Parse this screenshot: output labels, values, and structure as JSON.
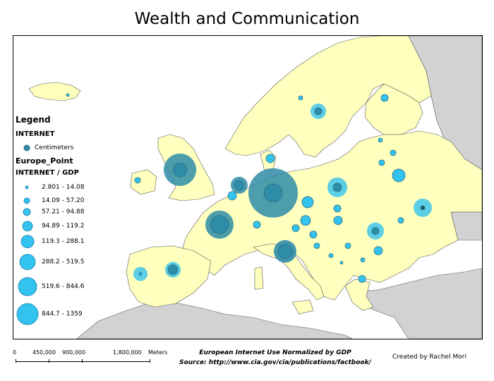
{
  "title": "Wealth and Communication",
  "legend": {
    "heading": "Legend",
    "layer1_name": "INTERNET",
    "layer1_unit": "Centimeters",
    "layer2_name": "Europe_Point",
    "layer2_field": "INTERNET / GDP",
    "classes": [
      {
        "label": "2.801 - 14.08"
      },
      {
        "label": "14.09 - 57.20"
      },
      {
        "label": "57.21 - 94.88"
      },
      {
        "label": "94.89 - 119.2"
      },
      {
        "label": "119.3 - 288.1"
      },
      {
        "label": "288.2 - 519.5"
      },
      {
        "label": "519.6 - 844.6"
      },
      {
        "label": "844.7 - 1359"
      }
    ]
  },
  "scale_bar": {
    "labels": [
      "0",
      "450,000",
      "900,000",
      "1,800,000",
      "Meters"
    ]
  },
  "credits": {
    "line1": "European Internet Use Normalized by GDP",
    "line2": "Source: http://www.cia.gov/cia/publications/factbook/",
    "author": "Created by Rachel Mori"
  },
  "colors": {
    "sea": "#ffffff",
    "land_europe": "#ffffbe",
    "land_other": "#d2d2d2",
    "border": "#5a5a5a",
    "bubble_large": "#2f8ca8",
    "bubble_light": "#33c3ef",
    "point_fill": "#1aa8e0"
  }
}
